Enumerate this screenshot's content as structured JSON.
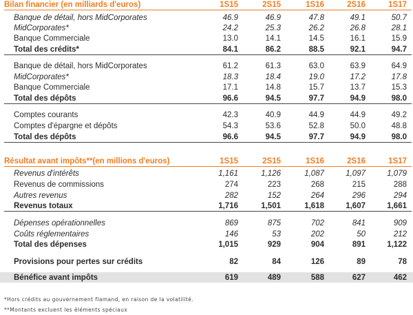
{
  "balance": {
    "title": "Bilan financier (en milliards d'euros)",
    "columns": [
      "1S15",
      "2S15",
      "1S16",
      "2S16",
      "1S17"
    ],
    "rows": [
      {
        "label": "Banque de détail, hors MidCorporates",
        "values": [
          "46.9",
          "46.9",
          "47.8",
          "49.1",
          "50.7"
        ]
      },
      {
        "label": "MidCorporates*",
        "values": [
          "24.2",
          "25.3",
          "26.2",
          "26.8",
          "28.1"
        ]
      },
      {
        "label": "Banque Commerciale",
        "values": [
          "13.0",
          "14.1",
          "14.5",
          "16.1",
          "15.9"
        ]
      },
      {
        "label": "Total des crédits*",
        "values": [
          "84.1",
          "86.2",
          "88.5",
          "92.1",
          "94.7"
        ]
      },
      {
        "label": "Banque de détail, hors MidCorporates",
        "values": [
          "61.2",
          "61.3",
          "63.0",
          "63.9",
          "64.9"
        ]
      },
      {
        "label": "MidCorporates*",
        "values": [
          "18.3",
          "18.4",
          "19.0",
          "17.2",
          "17.8"
        ]
      },
      {
        "label": "Banque Commerciale",
        "values": [
          "17.1",
          "14.8",
          "15.7",
          "13.7",
          "15.3"
        ]
      },
      {
        "label": "Total des dépôts",
        "values": [
          "96.6",
          "94.5",
          "97.7",
          "94.9",
          "98.0"
        ]
      },
      {
        "label": "Comptes courants",
        "values": [
          "42.3",
          "40.9",
          "44.9",
          "44.9",
          "49.2"
        ]
      },
      {
        "label": "Comptes d'épargne et dépôts",
        "values": [
          "54.3",
          "53.6",
          "52.8",
          "50.0",
          "48.8"
        ]
      },
      {
        "label": "Total des dépôts",
        "values": [
          "96.6",
          "94.5",
          "97.7",
          "94.9",
          "98.0"
        ]
      }
    ]
  },
  "result": {
    "title": "Résultat avant impôts**(en millions d'euros)",
    "columns": [
      "1S15",
      "2S15",
      "1S16",
      "2S16",
      "1S17"
    ],
    "rows": [
      {
        "label": "Revenus d'intérêts",
        "values": [
          "1,161",
          "1,126",
          "1,087",
          "1,097",
          "1,079"
        ]
      },
      {
        "label": "Revenus de commissions",
        "values": [
          "274",
          "223",
          "268",
          "215",
          "288"
        ]
      },
      {
        "label": "Autres revenus",
        "values": [
          "282",
          "152",
          "264",
          "296",
          "294"
        ]
      },
      {
        "label": "Revenus totaux",
        "values": [
          "1,716",
          "1,501",
          "1,618",
          "1,607",
          "1,661"
        ]
      },
      {
        "label": "Dépenses opérationnelles",
        "values": [
          "869",
          "875",
          "702",
          "841",
          "909"
        ]
      },
      {
        "label": "Coûts réglementaires",
        "values": [
          "146",
          "53",
          "202",
          "50",
          "212"
        ]
      },
      {
        "label": "Total des dépenses",
        "values": [
          "1,015",
          "929",
          "904",
          "891",
          "1,122"
        ]
      },
      {
        "label": "Provisions pour pertes sur crédits",
        "values": [
          "82",
          "84",
          "126",
          "89",
          "78"
        ]
      },
      {
        "label": "Bénéfice avant impôts",
        "values": [
          "619",
          "489",
          "588",
          "627",
          "462"
        ]
      }
    ]
  },
  "notes": [
    "*Hors crédits au gouvernement flamand, en raison de la volatilité.",
    "**Montants excluent les éléments spéciaux"
  ]
}
